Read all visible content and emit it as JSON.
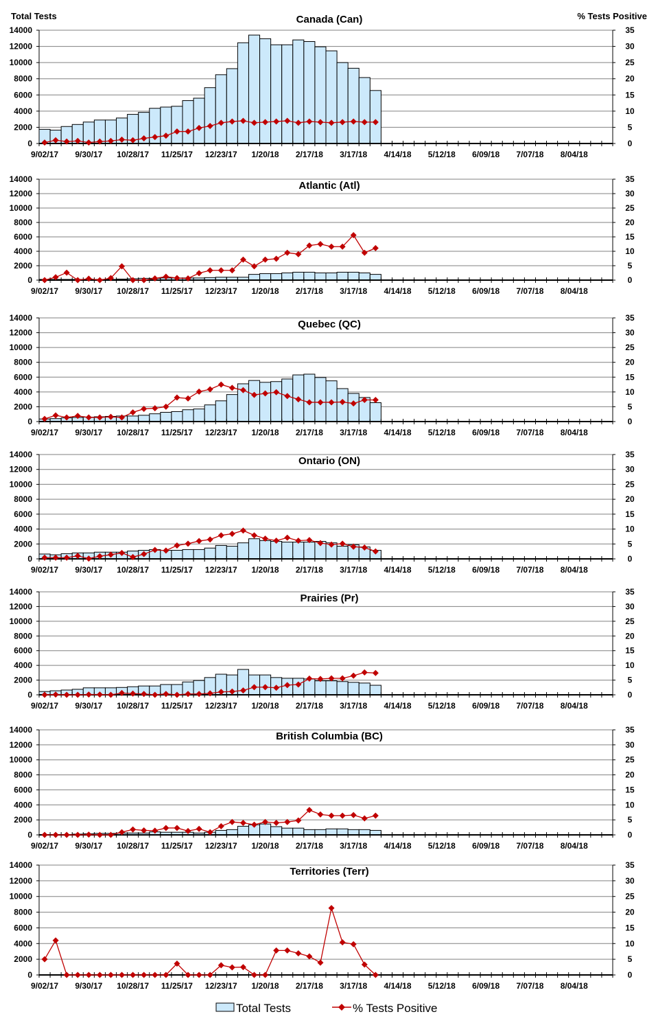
{
  "left_axis_title": "Total Tests",
  "right_axis_title": "% Tests Positive",
  "legend": {
    "bars": "Total Tests",
    "line": "% Tests Positive"
  },
  "colors": {
    "bar_fill": "#cce9fb",
    "bar_stroke": "#000000",
    "line": "#c00000",
    "grid": "#808080"
  },
  "chart_data": [
    {
      "type": "bar+line",
      "title": "Canada (Can)",
      "ylim": [
        0,
        14000
      ],
      "y2lim": [
        0,
        35
      ],
      "xtick_labels": [
        "9/02/17",
        "9/30/17",
        "10/28/17",
        "11/25/17",
        "12/23/17",
        "1/20/18",
        "2/17/18",
        "3/17/18",
        "4/14/18",
        "5/12/18",
        "6/09/18",
        "7/07/18",
        "8/04/18"
      ],
      "total_tests": [
        1750,
        1650,
        2100,
        2350,
        2650,
        2900,
        2900,
        3150,
        3600,
        3850,
        4350,
        4500,
        4600,
        5300,
        5600,
        6900,
        8500,
        9250,
        12450,
        13400,
        12950,
        12200,
        12200,
        12800,
        12600,
        11950,
        11450,
        10000,
        9300,
        8150,
        6550
      ],
      "pct_positive": [
        0.3,
        1.0,
        0.6,
        0.8,
        0.3,
        0.6,
        0.8,
        1.2,
        1.0,
        1.6,
        2.0,
        2.4,
        3.7,
        3.7,
        4.8,
        5.4,
        6.4,
        6.8,
        7.0,
        6.4,
        6.6,
        6.8,
        7.0,
        6.4,
        6.8,
        6.6,
        6.4,
        6.6,
        6.8,
        6.6,
        6.6
      ]
    },
    {
      "type": "bar+line",
      "title": "Atlantic (Atl)",
      "ylim": [
        0,
        14000
      ],
      "y2lim": [
        0,
        35
      ],
      "xtick_labels": [
        "9/02/17",
        "9/30/17",
        "10/28/17",
        "11/25/17",
        "12/23/17",
        "1/20/18",
        "2/17/18",
        "3/17/18",
        "4/14/18",
        "5/12/18",
        "6/09/18",
        "7/07/18",
        "8/04/18"
      ],
      "total_tests": [
        100,
        100,
        100,
        100,
        100,
        100,
        100,
        150,
        200,
        250,
        250,
        300,
        300,
        300,
        300,
        350,
        400,
        400,
        400,
        800,
        900,
        900,
        1000,
        1100,
        1100,
        1000,
        1000,
        1100,
        1100,
        1000,
        800
      ],
      "pct_positive": [
        0,
        1.0,
        2.6,
        0,
        0.5,
        0,
        0.7,
        4.8,
        0,
        0,
        0.6,
        1.2,
        0.7,
        0.6,
        2.4,
        3.4,
        3.4,
        3.4,
        7.1,
        4.8,
        7.1,
        7.4,
        9.5,
        9.0,
        12.0,
        12.5,
        11.6,
        11.6,
        15.6,
        9.5,
        11.1
      ]
    },
    {
      "type": "bar+line",
      "title": "Quebec (QC)",
      "ylim": [
        0,
        14000
      ],
      "y2lim": [
        0,
        35
      ],
      "xtick_labels": [
        "9/02/17",
        "9/30/17",
        "10/28/17",
        "11/25/17",
        "12/23/17",
        "1/20/18",
        "2/17/18",
        "3/17/18",
        "4/14/18",
        "5/12/18",
        "6/09/18",
        "7/07/18",
        "8/04/18"
      ],
      "total_tests": [
        350,
        400,
        500,
        550,
        600,
        650,
        700,
        750,
        750,
        850,
        1050,
        1250,
        1350,
        1600,
        1700,
        2250,
        2800,
        3650,
        5100,
        5550,
        5300,
        5400,
        5750,
        6300,
        6400,
        5950,
        5500,
        4450,
        3800,
        3250,
        2550
      ],
      "pct_positive": [
        0.9,
        2.1,
        1.4,
        1.9,
        1.4,
        1.4,
        1.6,
        1.4,
        3.1,
        4.3,
        4.5,
        5.0,
        8.1,
        7.8,
        10.1,
        10.9,
        12.5,
        11.4,
        10.6,
        9.0,
        9.5,
        9.9,
        8.6,
        7.5,
        6.5,
        6.5,
        6.5,
        6.6,
        6.1,
        7.3,
        7.3
      ]
    },
    {
      "type": "bar+line",
      "title": "Ontario (ON)",
      "ylim": [
        0,
        14000
      ],
      "y2lim": [
        0,
        35
      ],
      "xtick_labels": [
        "9/02/17",
        "9/30/17",
        "10/28/17",
        "11/25/17",
        "12/23/17",
        "1/20/18",
        "2/17/18",
        "3/17/18",
        "4/14/18",
        "5/12/18",
        "6/09/18",
        "7/07/18",
        "8/04/18"
      ],
      "total_tests": [
        650,
        550,
        700,
        800,
        800,
        900,
        900,
        900,
        1050,
        1150,
        1250,
        1150,
        1150,
        1250,
        1250,
        1450,
        1800,
        1700,
        2150,
        2700,
        2450,
        2350,
        2250,
        2250,
        2250,
        2350,
        2150,
        1700,
        1900,
        1600,
        1150
      ],
      "pct_positive": [
        0.4,
        0.4,
        0.4,
        1.0,
        0.1,
        0.9,
        1.4,
        2.0,
        0.6,
        1.6,
        3.0,
        2.8,
        4.5,
        5.1,
        6.0,
        6.5,
        7.9,
        8.4,
        9.5,
        7.9,
        6.8,
        6.1,
        7.1,
        6.1,
        6.3,
        5.3,
        4.8,
        5.1,
        4.1,
        3.8,
        2.5
      ]
    },
    {
      "type": "bar+line",
      "title": "Prairies (Pr)",
      "ylim": [
        0,
        14000
      ],
      "y2lim": [
        0,
        35
      ],
      "xtick_labels": [
        "9/02/17",
        "9/30/17",
        "10/28/17",
        "11/25/17",
        "12/23/17",
        "1/20/18",
        "2/17/18",
        "3/17/18",
        "4/14/18",
        "5/12/18",
        "6/09/18",
        "7/07/18",
        "8/04/18"
      ],
      "total_tests": [
        450,
        550,
        650,
        750,
        950,
        950,
        950,
        1000,
        1100,
        1200,
        1200,
        1400,
        1400,
        1750,
        1950,
        2350,
        2800,
        2700,
        3450,
        2700,
        2700,
        2350,
        2250,
        2250,
        2150,
        1900,
        1900,
        1800,
        1700,
        1600,
        1300
      ],
      "pct_positive": [
        0,
        0.1,
        0,
        0,
        0.1,
        0.1,
        0,
        0.6,
        0.4,
        0.3,
        0,
        0.3,
        0,
        0.3,
        0.3,
        0.5,
        1.0,
        1.1,
        1.5,
        2.6,
        2.6,
        2.4,
        3.3,
        3.5,
        5.5,
        5.4,
        5.6,
        5.6,
        6.5,
        7.6,
        7.4
      ]
    },
    {
      "type": "bar+line",
      "title": "British Columbia (BC)",
      "ylim": [
        0,
        14000
      ],
      "y2lim": [
        0,
        35
      ],
      "xtick_labels": [
        "9/02/17",
        "9/30/17",
        "10/28/17",
        "11/25/17",
        "12/23/17",
        "1/20/18",
        "2/17/18",
        "3/17/18",
        "4/14/18",
        "5/12/18",
        "6/09/18",
        "7/07/18",
        "8/04/18"
      ],
      "total_tests": [
        50,
        50,
        50,
        100,
        150,
        200,
        200,
        250,
        250,
        250,
        400,
        350,
        350,
        350,
        250,
        350,
        600,
        700,
        1150,
        1350,
        1450,
        1100,
        900,
        900,
        700,
        700,
        800,
        800,
        700,
        700,
        600
      ],
      "pct_positive": [
        0,
        0,
        0,
        0,
        0.1,
        0,
        0,
        0.9,
        1.8,
        1.5,
        1.4,
        2.3,
        2.3,
        1.3,
        2.0,
        0.9,
        2.9,
        4.3,
        4.0,
        3.4,
        4.3,
        4.0,
        4.3,
        4.8,
        8.3,
        6.8,
        6.4,
        6.4,
        6.6,
        5.5,
        6.4
      ]
    },
    {
      "type": "bar+line",
      "title": "Territories (Terr)",
      "ylim": [
        0,
        14000
      ],
      "y2lim": [
        0,
        35
      ],
      "xtick_labels": [
        "9/02/17",
        "9/30/17",
        "10/28/17",
        "11/25/17",
        "12/23/17",
        "1/20/18",
        "2/17/18",
        "3/17/18",
        "4/14/18",
        "5/12/18",
        "6/09/18",
        "7/07/18",
        "8/04/18"
      ],
      "total_tests": [
        20,
        20,
        20,
        20,
        20,
        20,
        20,
        20,
        20,
        30,
        30,
        30,
        30,
        30,
        30,
        30,
        40,
        40,
        50,
        50,
        50,
        40,
        40,
        40,
        40,
        40,
        40,
        40,
        40,
        30,
        30
      ],
      "pct_positive": [
        5.0,
        11.0,
        0,
        0,
        0,
        0,
        0,
        0,
        0,
        0,
        0,
        0,
        3.6,
        0,
        0,
        0,
        3.1,
        2.4,
        2.5,
        0,
        0,
        7.8,
        7.8,
        6.9,
        5.9,
        3.9,
        21.3,
        10.4,
        9.8,
        3.3,
        0
      ]
    }
  ]
}
